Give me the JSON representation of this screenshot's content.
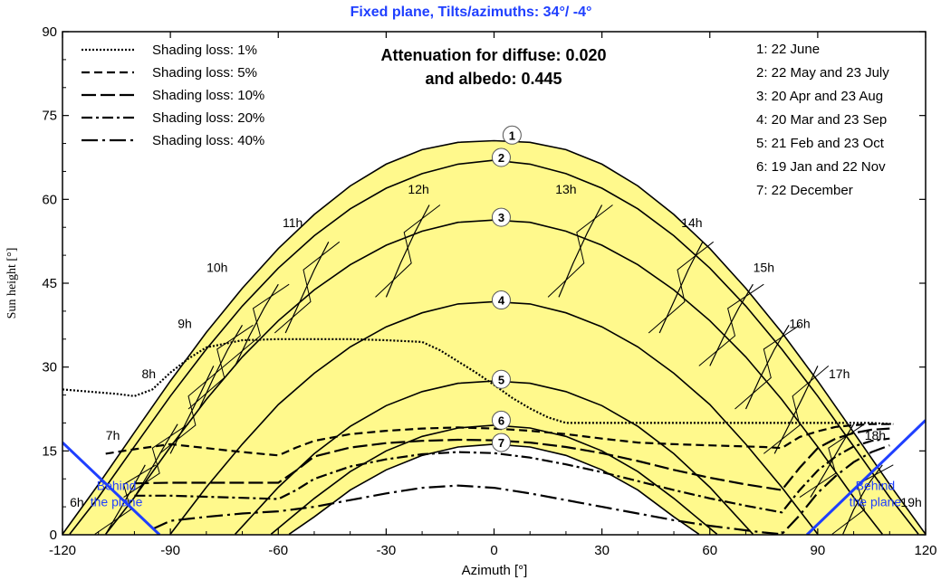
{
  "chart_data": {
    "type": "line",
    "title": "Fixed plane, Tilts/azimuths: 34°/ -4°",
    "xlabel": "Azimuth [°]",
    "ylabel": "Sun height [°]",
    "xlim": [
      -120,
      120
    ],
    "ylim": [
      0,
      90
    ],
    "x_ticks": [
      "-120",
      "-90",
      "-60",
      "-30",
      "0",
      "30",
      "60",
      "90",
      "120"
    ],
    "y_ticks": [
      "0",
      "15",
      "30",
      "45",
      "60",
      "75",
      "90"
    ],
    "attenuation_line1": "Attenuation for diffuse: 0.020",
    "attenuation_line2": "and albedo: 0.445",
    "legend_shading": [
      {
        "label": "Shading loss: 1%",
        "dash": "2,2"
      },
      {
        "label": "Shading loss: 5%",
        "dash": "9,5"
      },
      {
        "label": "Shading loss: 10%",
        "dash": "16,5"
      },
      {
        "label": "Shading loss: 20%",
        "dash": "12,4,3,4"
      },
      {
        "label": "Shading loss: 40%",
        "dash": "18,5,3,5"
      }
    ],
    "legend_dates": [
      "1: 22 June",
      "2: 22 May and 23 July",
      "3: 20 Apr and 23 Aug",
      "4: 20 Mar and 23 Sep",
      "5: 21 Feb and 23 Oct",
      "6: 19 Jan and 22 Nov",
      "7: 22 December"
    ],
    "sun_paths": [
      {
        "id": "1",
        "label": "1",
        "x": [
          -120,
          -110,
          -100,
          -90,
          -80,
          -70,
          -60,
          -50,
          -40,
          -30,
          -20,
          -10,
          0,
          10,
          20,
          30,
          40,
          50,
          60,
          70,
          80,
          90,
          100,
          110,
          120
        ],
        "y": [
          0.1,
          9.0,
          18.3,
          27.5,
          36.2,
          44.1,
          51.2,
          57.3,
          62.4,
          66.3,
          68.9,
          70.2,
          70.5,
          70.2,
          68.9,
          66.3,
          62.4,
          57.3,
          51.2,
          44.1,
          36.2,
          27.5,
          18.3,
          9.0,
          0.1
        ]
      },
      {
        "id": "2",
        "label": "2",
        "x": [
          -118,
          -110,
          -100,
          -90,
          -80,
          -70,
          -60,
          -50,
          -40,
          -30,
          -20,
          -10,
          0,
          10,
          20,
          30,
          40,
          50,
          60,
          70,
          80,
          90,
          100,
          110,
          118
        ],
        "y": [
          0.1,
          6.7,
          15.8,
          24.8,
          33.2,
          40.9,
          47.7,
          53.5,
          58.3,
          62.0,
          64.6,
          66.3,
          67.0,
          66.3,
          64.6,
          62.0,
          58.3,
          53.5,
          47.7,
          40.9,
          33.2,
          24.8,
          15.8,
          6.7,
          0.1
        ]
      },
      {
        "id": "3",
        "label": "3",
        "x": [
          -108,
          -100,
          -90,
          -80,
          -70,
          -60,
          -50,
          -40,
          -30,
          -20,
          -10,
          0,
          10,
          20,
          30,
          40,
          50,
          60,
          70,
          80,
          90,
          100,
          108
        ],
        "y": [
          0.1,
          6.7,
          15.7,
          24.2,
          31.8,
          38.3,
          43.8,
          48.3,
          51.8,
          54.3,
          55.9,
          56.3,
          55.9,
          54.3,
          51.8,
          48.3,
          43.8,
          38.3,
          31.8,
          24.2,
          15.7,
          6.7,
          0.1
        ]
      },
      {
        "id": "4",
        "label": "4",
        "x": [
          -90,
          -80,
          -70,
          -60,
          -50,
          -40,
          -30,
          -20,
          -10,
          0,
          10,
          20,
          30,
          40,
          50,
          60,
          70,
          80,
          90
        ],
        "y": [
          0.1,
          8.5,
          16.2,
          23.3,
          28.9,
          33.6,
          37.2,
          39.7,
          41.3,
          41.7,
          41.3,
          39.7,
          37.2,
          33.6,
          28.9,
          23.3,
          16.2,
          8.5,
          0.1
        ]
      },
      {
        "id": "5",
        "label": "5",
        "x": [
          -72,
          -60,
          -50,
          -40,
          -30,
          -20,
          -10,
          0,
          10,
          20,
          30,
          40,
          50,
          60,
          72
        ],
        "y": [
          0.1,
          8.5,
          14.5,
          19.4,
          23.1,
          25.6,
          27.1,
          27.5,
          27.1,
          25.6,
          23.1,
          19.4,
          14.5,
          8.5,
          0.1
        ]
      },
      {
        "id": "6",
        "label": "6",
        "x": [
          -62,
          -50,
          -40,
          -30,
          -20,
          -10,
          0,
          10,
          20,
          30,
          40,
          50,
          62
        ],
        "y": [
          0.1,
          6.5,
          11.3,
          15.0,
          17.6,
          19.1,
          19.6,
          19.1,
          17.6,
          15.0,
          11.3,
          6.5,
          0.1
        ]
      },
      {
        "id": "7",
        "label": "7",
        "x": [
          -57,
          -50,
          -40,
          -30,
          -20,
          -10,
          0,
          10,
          20,
          30,
          40,
          50,
          57
        ],
        "y": [
          0.1,
          3.2,
          8.0,
          11.6,
          14.2,
          15.7,
          16.2,
          15.7,
          14.2,
          11.6,
          8.0,
          3.2,
          0.1
        ]
      }
    ],
    "hour_labels": [
      {
        "label": "6h",
        "x": -116,
        "y": 5
      },
      {
        "label": "7h",
        "x": -106,
        "y": 17
      },
      {
        "label": "8h",
        "x": -96,
        "y": 28
      },
      {
        "label": "9h",
        "x": -86,
        "y": 37
      },
      {
        "label": "10h",
        "x": -77,
        "y": 47
      },
      {
        "label": "11h",
        "x": -56,
        "y": 55
      },
      {
        "label": "12h",
        "x": -21,
        "y": 61
      },
      {
        "label": "13h",
        "x": 20,
        "y": 61
      },
      {
        "label": "14h",
        "x": 55,
        "y": 55
      },
      {
        "label": "15h",
        "x": 75,
        "y": 47
      },
      {
        "label": "16h",
        "x": 85,
        "y": 37
      },
      {
        "label": "17h",
        "x": 96,
        "y": 28
      },
      {
        "label": "18h",
        "x": 106,
        "y": 17
      },
      {
        "label": "19h",
        "x": 116,
        "y": 5
      }
    ],
    "hour_loops": [
      {
        "hour": "6",
        "x": [
          -108,
          -104,
          -100,
          -97
        ],
        "y": [
          0.1,
          4.5,
          9.0,
          12.5
        ]
      },
      {
        "hour": "7",
        "x": [
          -100,
          -96,
          -92,
          -88
        ],
        "y": [
          6.7,
          11.0,
          15.5,
          19.8
        ]
      },
      {
        "hour": "8",
        "x": [
          -90,
          -86,
          -82,
          -78
        ],
        "y": [
          14.5,
          19.6,
          24.8,
          30.2
        ]
      },
      {
        "hour": "9",
        "x": [
          -82,
          -78,
          -74,
          -70
        ],
        "y": [
          22.5,
          28.1,
          33.2,
          37.5
        ]
      },
      {
        "hour": "10",
        "x": [
          -72,
          -68,
          -64,
          -60
        ],
        "y": [
          30.2,
          35.6,
          40.5,
          44.8
        ]
      },
      {
        "hour": "11",
        "x": [
          -58,
          -54,
          -50,
          -46
        ],
        "y": [
          36.1,
          41.7,
          47.4,
          52.4
        ]
      },
      {
        "hour": "12",
        "x": [
          -30,
          -26,
          -22,
          -18
        ],
        "y": [
          42.5,
          48.6,
          54.1,
          59.0
        ]
      },
      {
        "hour": "13",
        "x": [
          18,
          22,
          26,
          30
        ],
        "y": [
          42.5,
          48.6,
          54.1,
          59.0
        ]
      },
      {
        "hour": "14",
        "x": [
          46,
          50,
          54,
          58
        ],
        "y": [
          36.1,
          41.7,
          47.4,
          52.4
        ]
      },
      {
        "hour": "15",
        "x": [
          60,
          64,
          68,
          72
        ],
        "y": [
          30.2,
          35.6,
          40.5,
          44.8
        ]
      },
      {
        "hour": "16",
        "x": [
          70,
          74,
          78,
          82
        ],
        "y": [
          22.5,
          28.1,
          33.2,
          37.5
        ]
      },
      {
        "hour": "17",
        "x": [
          78,
          82,
          86,
          90
        ],
        "y": [
          14.5,
          19.6,
          24.8,
          30.2
        ]
      },
      {
        "hour": "18",
        "x": [
          88,
          92,
          96,
          100
        ],
        "y": [
          6.7,
          11.0,
          15.5,
          19.8
        ]
      },
      {
        "hour": "19",
        "x": [
          97,
          100,
          104,
          108
        ],
        "y": [
          0.1,
          4.5,
          9.0,
          12.5
        ]
      }
    ],
    "shading_curves": [
      {
        "name": "Shading loss: 1%",
        "dash": "2,2",
        "x": [
          -120,
          -105,
          -100,
          -95,
          -90,
          -85,
          -80,
          -70,
          -60,
          -50,
          -40,
          -30,
          -20,
          -15,
          -10,
          -5,
          0,
          5,
          10,
          15,
          20,
          30,
          40,
          50,
          60,
          70,
          80,
          85,
          90,
          95,
          100,
          105,
          111
        ],
        "y": [
          26.0,
          25.2,
          24.8,
          26.0,
          29.0,
          31.5,
          33.5,
          34.8,
          35.0,
          35.0,
          35.0,
          34.8,
          34.5,
          33.0,
          31.0,
          29.0,
          26.8,
          24.5,
          22.6,
          21.0,
          20.0,
          20.0,
          20.0,
          20.0,
          20.0,
          20.0,
          20.0,
          20.0,
          20.0,
          20.0,
          20.0,
          20.0,
          19.8
        ]
      },
      {
        "name": "Shading loss: 5%",
        "dash": "9,5",
        "x": [
          -108,
          -100,
          -90,
          -80,
          -70,
          -60,
          -55,
          -50,
          -40,
          -30,
          -20,
          -10,
          0,
          10,
          20,
          30,
          40,
          50,
          60,
          70,
          75,
          80,
          85,
          90,
          95,
          100,
          105,
          110
        ],
        "y": [
          14.5,
          15.3,
          16.2,
          15.5,
          14.8,
          14.2,
          15.6,
          16.8,
          18.0,
          18.6,
          19.0,
          19.2,
          19.0,
          18.6,
          18.0,
          17.2,
          16.5,
          16.2,
          16.0,
          15.8,
          15.7,
          15.5,
          17.5,
          18.5,
          19.3,
          19.6,
          19.8,
          19.8
        ]
      },
      {
        "name": "Shading loss: 10%",
        "dash": "16,5",
        "x": [
          -100,
          -90,
          -80,
          -70,
          -60,
          -55,
          -50,
          -40,
          -30,
          -20,
          -10,
          0,
          10,
          20,
          30,
          40,
          50,
          60,
          70,
          75,
          80,
          85,
          90,
          95,
          100,
          105,
          110
        ],
        "y": [
          9.2,
          9.3,
          9.3,
          9.3,
          9.3,
          11.5,
          14.0,
          15.6,
          16.4,
          16.8,
          17.0,
          16.9,
          16.5,
          15.7,
          14.6,
          13.2,
          11.6,
          10.2,
          9.0,
          8.5,
          8.0,
          12.0,
          15.5,
          17.2,
          18.2,
          18.8,
          19.0
        ]
      },
      {
        "name": "Shading loss: 20%",
        "dash": "12,4,3,4",
        "x": [
          -100,
          -90,
          -80,
          -70,
          -60,
          -55,
          -50,
          -40,
          -30,
          -20,
          -10,
          0,
          10,
          20,
          30,
          40,
          50,
          60,
          70,
          75,
          80,
          85,
          90,
          95,
          100,
          105,
          110
        ],
        "y": [
          7.0,
          7.0,
          6.8,
          6.6,
          6.4,
          8.0,
          10.0,
          12.2,
          13.5,
          14.4,
          14.8,
          14.6,
          13.8,
          12.6,
          11.2,
          9.6,
          8.0,
          6.5,
          5.2,
          4.6,
          4.0,
          8.0,
          11.5,
          14.0,
          15.8,
          16.8,
          17.2
        ]
      },
      {
        "name": "Shading loss: 40%",
        "dash": "18,5,3,5",
        "x": [
          -95,
          -90,
          -80,
          -70,
          -60,
          -55,
          -50,
          -40,
          -30,
          -20,
          -10,
          0,
          10,
          20,
          30,
          40,
          50,
          60,
          70,
          75,
          80,
          85,
          90,
          95,
          100,
          105,
          110
        ],
        "y": [
          1.0,
          2.5,
          3.2,
          3.8,
          4.2,
          4.6,
          5.0,
          6.2,
          7.4,
          8.4,
          8.8,
          8.4,
          7.4,
          6.2,
          5.0,
          3.8,
          2.6,
          1.6,
          0.8,
          0.4,
          0.1,
          3.5,
          7.5,
          10.5,
          13.0,
          14.8,
          16.0
        ]
      }
    ],
    "plane_lines": [
      {
        "x": [
          -120,
          -93
        ],
        "y": [
          16.5,
          0
        ]
      },
      {
        "x": [
          87,
          120
        ],
        "y": [
          0,
          20.5
        ]
      }
    ],
    "behind_plane_left": [
      "Behind",
      "the plane"
    ],
    "behind_plane_right": [
      "Behind",
      "the plane"
    ],
    "colors": {
      "fill": "#fff98c",
      "plane": "#1f3fff",
      "title": "#1f3fff",
      "label_circle": "#ffffff"
    }
  }
}
